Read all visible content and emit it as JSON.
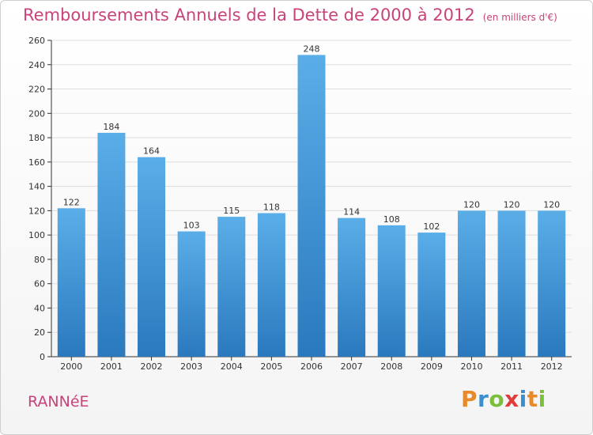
{
  "header": {
    "title": "Remboursements Annuels de la Dette de 2000 à 2012",
    "subtitle": "(en milliers d'€)"
  },
  "footer": {
    "commune": "RANNéE",
    "logo": "Proxiti"
  },
  "colors": {
    "title": "#c8437a",
    "bar_top": "#5aaee8",
    "bar_bottom": "#2a79be",
    "grid": "#dddddd",
    "logo_letters": [
      "#e8892a",
      "#3a8fd1",
      "#7bbf3a",
      "#e23b3b",
      "#3a8fd1",
      "#e8892a",
      "#7bbf3a"
    ]
  },
  "chart_data": {
    "type": "bar",
    "title": "Remboursements Annuels de la Dette de 2000 à 2012",
    "subtitle": "(en milliers d'€)",
    "xlabel": "",
    "ylabel": "",
    "categories": [
      "2000",
      "2001",
      "2002",
      "2003",
      "2004",
      "2005",
      "2006",
      "2007",
      "2008",
      "2009",
      "2010",
      "2011",
      "2012"
    ],
    "values": [
      122,
      184,
      164,
      103,
      115,
      118,
      248,
      114,
      108,
      102,
      120,
      120,
      120
    ],
    "ylim": [
      0,
      260
    ],
    "yticks": [
      0,
      20,
      40,
      60,
      80,
      100,
      120,
      140,
      160,
      180,
      200,
      220,
      240,
      260
    ],
    "grid": true,
    "legend": "none"
  }
}
